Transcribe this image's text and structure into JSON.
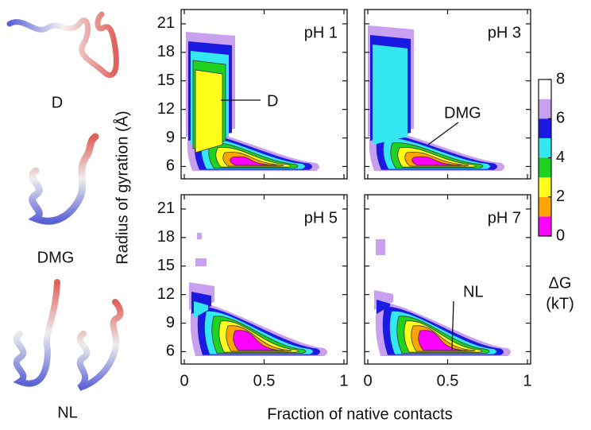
{
  "chart_data": {
    "type": "contour",
    "xlabel": "Fraction of native contacts",
    "ylabel": "Radius of gyration (Å)",
    "xlim": [
      -0.02,
      1.02
    ],
    "ylim": [
      4.7,
      22.5
    ],
    "xticks": [
      0,
      0.5,
      1
    ],
    "yticks": [
      6,
      9,
      12,
      15,
      18,
      21
    ],
    "panels": [
      {
        "title": "pH 1",
        "annotation": "D"
      },
      {
        "title": "pH 3",
        "annotation": "DMG"
      },
      {
        "title": "pH 5"
      },
      {
        "title": "pH 7",
        "annotation": "NL"
      }
    ],
    "colorbar": {
      "label": [
        "ΔG",
        "(kT)"
      ],
      "lim": [
        0,
        8
      ],
      "ticks": [
        0,
        2,
        4,
        6,
        8
      ],
      "colors": [
        "#ff00ff",
        "#ffa500",
        "#ffff1a",
        "#1fd21f",
        "#33e8f0",
        "#1a1ae0",
        "#c9a0f0",
        "#ffffff"
      ]
    },
    "structures": [
      "D",
      "DMG",
      "NL"
    ]
  }
}
